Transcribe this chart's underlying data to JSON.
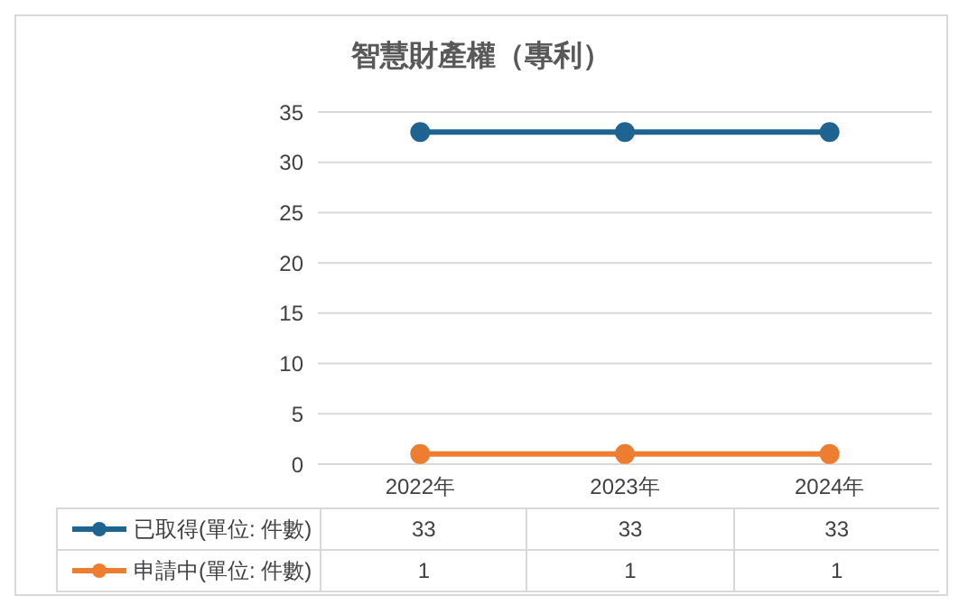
{
  "chart_data": {
    "type": "line",
    "title": "智慧財產權（專利）",
    "categories": [
      "2022年",
      "2023年",
      "2024年"
    ],
    "series": [
      {
        "name": "已取得(單位: 件數)",
        "color": "#1f6391",
        "values": [
          33,
          33,
          33
        ]
      },
      {
        "name": "申請中(單位: 件數)",
        "color": "#ed7d31",
        "values": [
          1,
          1,
          1
        ]
      }
    ],
    "ylim": [
      0,
      35
    ],
    "yticks": [
      0,
      5,
      10,
      15,
      20,
      25,
      30,
      35
    ],
    "grid": "y",
    "legend": "bottom",
    "data_labels": true,
    "marker": "circle",
    "line_style": "solid"
  }
}
